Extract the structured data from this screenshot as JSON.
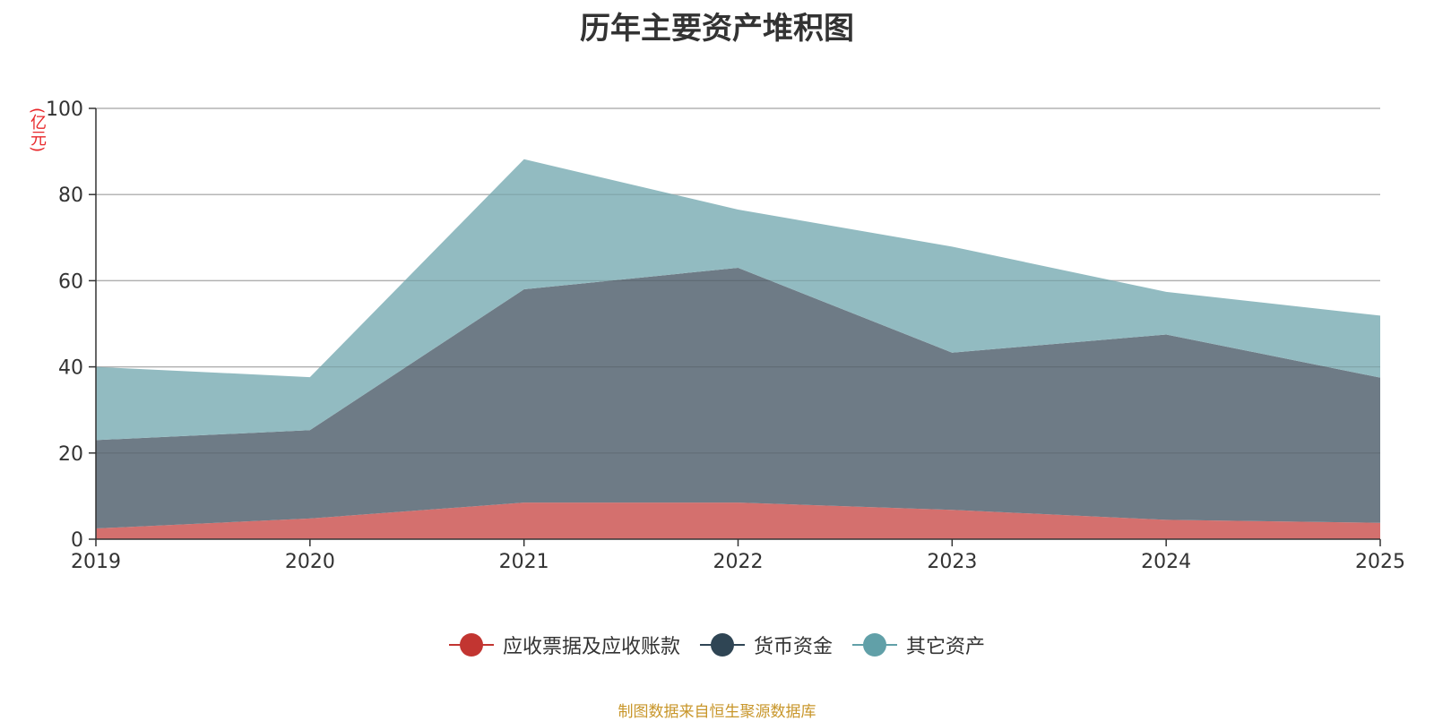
{
  "chart_data": {
    "type": "area",
    "stacked": true,
    "title": "历年主要资产堆积图",
    "unit_label": "(亿元)",
    "x": [
      "2019",
      "2020",
      "2021",
      "2022",
      "2023",
      "2024",
      "2025"
    ],
    "ylim": [
      0,
      100
    ],
    "yticks": [
      "0",
      "20",
      "40",
      "60",
      "80",
      "100"
    ],
    "grid": true,
    "legend_position": "bottom",
    "series": [
      {
        "name": "应收票据及应收账款",
        "values": [
          2.5,
          4.8,
          8.5,
          8.5,
          6.8,
          4.5,
          3.8
        ],
        "color": "#d4706e",
        "legend_color": "#c23531"
      },
      {
        "name": "货币资金",
        "values": [
          20.5,
          20.5,
          49.5,
          54.5,
          36.5,
          43.0,
          33.7
        ],
        "color": "#6e7b86",
        "legend_color": "#2f4554"
      },
      {
        "name": "其它资产",
        "values": [
          17.0,
          12.3,
          30.2,
          13.5,
          24.6,
          9.9,
          14.4
        ],
        "color": "#92bbc1",
        "legend_color": "#61a0a8"
      }
    ]
  },
  "footer": {
    "source": "制图数据来自恒生聚源数据库"
  }
}
